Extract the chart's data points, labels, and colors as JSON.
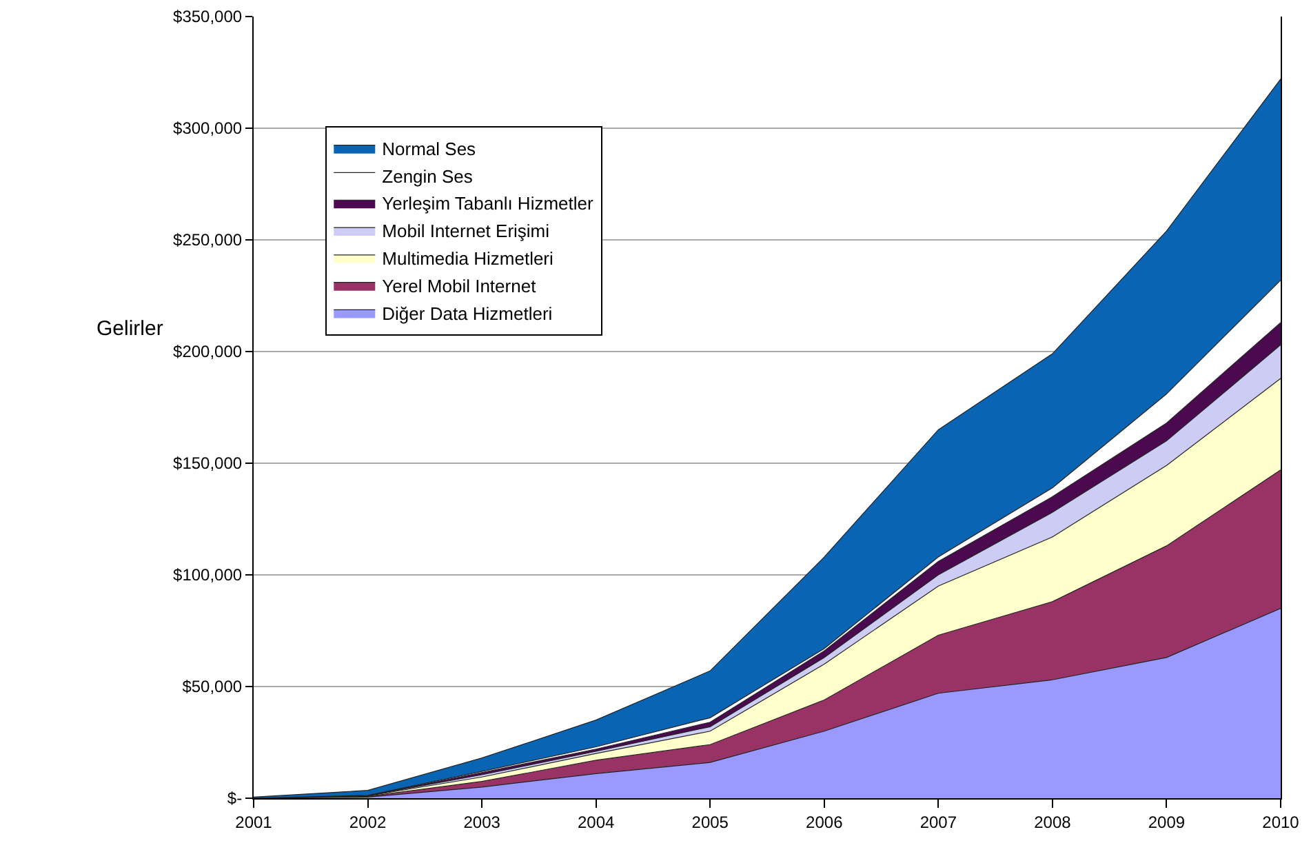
{
  "chart_data": {
    "type": "area",
    "stacked": true,
    "ylabel": "Gelirler",
    "x": [
      2001,
      2002,
      2003,
      2004,
      2005,
      2006,
      2007,
      2008,
      2009,
      2010
    ],
    "series": [
      {
        "name": "Diğer Data Hizmetleri",
        "color": "#9999ff",
        "values": [
          0,
          500,
          5000,
          11000,
          16000,
          30000,
          47000,
          53000,
          63000,
          85000
        ]
      },
      {
        "name": "Yerel Mobil Internet",
        "color": "#993366",
        "values": [
          0,
          300,
          2500,
          6000,
          8000,
          14000,
          26000,
          35000,
          50000,
          62000
        ]
      },
      {
        "name": "Multimedia Hizmetleri",
        "color": "#ffffcc",
        "values": [
          0,
          200,
          2000,
          3000,
          6000,
          16000,
          22000,
          29000,
          36000,
          41000
        ]
      },
      {
        "name": "Mobil Internet Erişimi",
        "color": "#ccccf5",
        "values": [
          0,
          100,
          1000,
          1000,
          2000,
          3000,
          5000,
          11000,
          11000,
          15000
        ]
      },
      {
        "name": "Yerleşim Tabanlı Hizmetler",
        "color": "#4b0a4f",
        "values": [
          0,
          100,
          1000,
          1000,
          2000,
          3000,
          6000,
          7000,
          8000,
          10000
        ]
      },
      {
        "name": "Zengin Ses",
        "color": "#ffffff",
        "values": [
          0,
          100,
          500,
          1000,
          2000,
          1000,
          2000,
          4000,
          13000,
          19000
        ]
      },
      {
        "name": "Normal Ses",
        "color": "#0a64b4",
        "values": [
          500,
          2200,
          6000,
          12000,
          21000,
          41000,
          57000,
          60000,
          73000,
          90000
        ]
      }
    ],
    "xlim": [
      2001,
      2010
    ],
    "xticks": [
      2001,
      2002,
      2003,
      2004,
      2005,
      2006,
      2007,
      2008,
      2009,
      2010
    ],
    "ylim": [
      0,
      350000
    ],
    "yticks": [
      {
        "value": 0,
        "label": "$-"
      },
      {
        "value": 50000,
        "label": "$50,000"
      },
      {
        "value": 100000,
        "label": "$100,000"
      },
      {
        "value": 150000,
        "label": "$150,000"
      },
      {
        "value": 200000,
        "label": "$200,000"
      },
      {
        "value": 250000,
        "label": "$250,000"
      },
      {
        "value": 300000,
        "label": "$300,000"
      },
      {
        "value": 350000,
        "label": "$350,000"
      }
    ],
    "grid": "y",
    "legend": "top left"
  }
}
